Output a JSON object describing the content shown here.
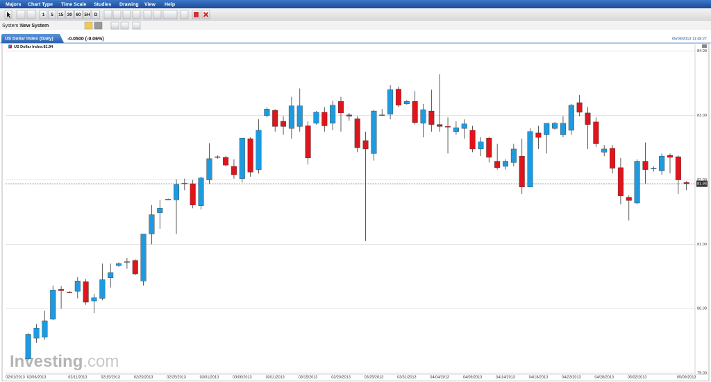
{
  "menu": [
    "Majors",
    "Chart Type",
    "Time Scale",
    "Studies",
    "Drawing",
    "View",
    "Help"
  ],
  "toolbar": {
    "intervals": [
      "1",
      "5",
      "15",
      "30",
      "60",
      "5H",
      "D"
    ]
  },
  "system": {
    "label": "System:",
    "value": "New System"
  },
  "tab": {
    "title": "US Dollar Index (Daily)",
    "change": "-0.0500 (-0.06%)",
    "timestamp": "05/09/2013 11:48:27"
  },
  "watermark": {
    "brand": "Investing",
    "suffix": ".com"
  },
  "chart_data": {
    "type": "candlestick",
    "legend_label": "US Dollar Index:81.94",
    "up_color": "#1e9be0",
    "down_color": "#e0141b",
    "categories": [
      "02/01/2013",
      null,
      null,
      "02/06/2013",
      null,
      null,
      null,
      null,
      "02/11/2013",
      null,
      null,
      null,
      "02/15/2013",
      null,
      null,
      null,
      "02/20/2013",
      null,
      null,
      null,
      "02/25/2013",
      null,
      null,
      null,
      "03/01/2013",
      null,
      null,
      null,
      "03/06/2013",
      null,
      null,
      null,
      "03/11/2013",
      null,
      null,
      null,
      "03/15/2013",
      null,
      null,
      null,
      "03/20/2013",
      null,
      null,
      null,
      "03/25/2013",
      null,
      null,
      null,
      "03/31/2013",
      null,
      null,
      null,
      "04/04/2013",
      null,
      null,
      null,
      "04/09/2013",
      null,
      null,
      null,
      "04/14/2013",
      null,
      null,
      null,
      "04/18/2013",
      null,
      null,
      null,
      "04/23/2013",
      null,
      null,
      null,
      "04/28/2013",
      null,
      null,
      null,
      "05/02/2013",
      null,
      null,
      null,
      null,
      null,
      "05/09/2013"
    ],
    "open": [
      null,
      null,
      79.22,
      79.54,
      79.56,
      79.84,
      80.3,
      80.26,
      80.27,
      80.42,
      80.12,
      80.16,
      80.48,
      80.67,
      80.72,
      80.75,
      80.43,
      81.16,
      81.49,
      81.7,
      81.69,
      81.94,
      81.94,
      81.6,
      82.0,
      82.36,
      82.35,
      82.21,
      82.02,
      82.64,
      82.16,
      83.0,
      83.08,
      82.91,
      82.8,
      82.83,
      82.84,
      82.88,
      83.05,
      82.88,
      83.22,
      83.01,
      82.95,
      82.61,
      82.41,
      83.0,
      83.02,
      83.41,
      83.18,
      83.22,
      82.88,
      83.07,
      82.86,
      82.83,
      82.75,
      82.8,
      82.77,
      82.48,
      82.65,
      82.29,
      82.21,
      82.27,
      82.37,
      81.89,
      82.73,
      82.7,
      82.8,
      82.7,
      82.77,
      83.2,
      83.04,
      82.9,
      82.43,
      82.49,
      82.19,
      81.73,
      81.64,
      82.29,
      82.17,
      82.14,
      82.38,
      82.36,
      81.96
    ],
    "high": [
      null,
      null,
      79.62,
      79.76,
      79.97,
      80.36,
      80.35,
      80.27,
      80.49,
      80.46,
      80.23,
      80.7,
      80.7,
      80.72,
      80.79,
      80.77,
      81.16,
      81.61,
      81.69,
      81.71,
      82.01,
      82.02,
      82.0,
      82.05,
      82.57,
      82.38,
      82.37,
      82.32,
      82.65,
      82.66,
      82.94,
      83.13,
      83.1,
      82.99,
      83.29,
      83.42,
      82.91,
      83.07,
      83.13,
      83.23,
      83.29,
      83.04,
      82.99,
      82.75,
      83.09,
      83.1,
      83.47,
      83.45,
      83.24,
      83.38,
      83.18,
      83.4,
      83.64,
      82.97,
      82.91,
      82.94,
      82.84,
      82.66,
      82.67,
      82.56,
      82.32,
      82.56,
      82.64,
      82.8,
      82.84,
      82.88,
      82.9,
      82.99,
      83.18,
      83.32,
      83.13,
      82.97,
      82.54,
      82.54,
      82.34,
      81.76,
      82.32,
      82.58,
      82.21,
      82.41,
      82.41,
      82.38,
      81.98
    ],
    "low": [
      null,
      null,
      79.2,
      79.47,
      79.52,
      79.82,
      80.0,
      80.24,
      80.16,
      80.06,
      79.93,
      80.13,
      80.33,
      80.65,
      80.62,
      80.52,
      80.36,
      81.0,
      81.24,
      81.69,
      81.16,
      81.84,
      81.56,
      81.54,
      81.94,
      82.33,
      82.21,
      82.02,
      81.96,
      82.05,
      82.1,
      82.97,
      82.75,
      82.7,
      82.64,
      82.75,
      82.24,
      82.86,
      82.75,
      82.77,
      82.75,
      82.92,
      82.43,
      81.05,
      82.3,
      82.99,
      82.94,
      83.13,
      83.17,
      82.86,
      82.66,
      82.75,
      82.75,
      82.41,
      82.7,
      82.64,
      82.43,
      82.37,
      82.27,
      82.16,
      82.16,
      82.21,
      81.78,
      81.89,
      82.48,
      82.41,
      82.78,
      82.66,
      82.7,
      82.99,
      82.48,
      82.51,
      82.37,
      82.1,
      81.62,
      81.37,
      81.62,
      81.94,
      82.13,
      82.08,
      82.1,
      81.78,
      81.84
    ],
    "close": [
      null,
      null,
      79.6,
      79.7,
      79.81,
      80.29,
      80.28,
      80.25,
      80.43,
      80.1,
      80.17,
      80.45,
      80.56,
      80.7,
      80.73,
      80.54,
      81.16,
      81.46,
      81.56,
      81.7,
      81.93,
      81.95,
      81.61,
      82.03,
      82.33,
      82.35,
      82.23,
      82.08,
      82.65,
      82.12,
      82.77,
      83.1,
      82.83,
      82.83,
      83.15,
      83.15,
      82.34,
      83.05,
      82.84,
      83.16,
      83.04,
      82.99,
      82.5,
      82.48,
      83.07,
      83.01,
      83.4,
      83.16,
      83.22,
      82.89,
      83.09,
      82.86,
      82.83,
      82.82,
      82.81,
      82.87,
      82.48,
      82.59,
      82.35,
      82.19,
      82.29,
      82.48,
      81.89,
      82.75,
      82.66,
      82.88,
      82.88,
      82.88,
      83.16,
      83.05,
      82.86,
      82.56,
      82.48,
      82.18,
      81.75,
      81.68,
      82.29,
      82.16,
      82.18,
      82.37,
      82.35,
      82.0,
      81.94
    ],
    "last_price": 81.94,
    "ylim": [
      78.98,
      84.04
    ],
    "yticks": [
      {
        "value": 79,
        "label": "79.00"
      },
      {
        "value": 80,
        "label": "80.00"
      },
      {
        "value": 81,
        "label": "81.00"
      },
      {
        "value": 82,
        "label": "82.00"
      },
      {
        "value": 83,
        "label": "83.00"
      },
      {
        "value": 84,
        "label": "84.00"
      }
    ],
    "grid": true
  }
}
